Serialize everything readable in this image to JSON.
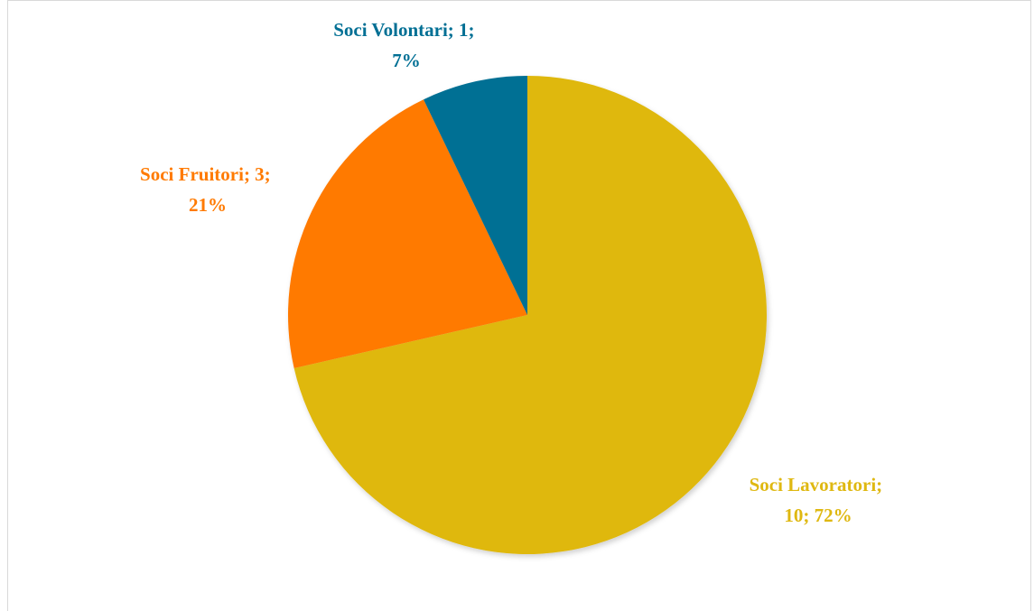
{
  "chart_data": {
    "type": "pie",
    "title": "",
    "series": [
      {
        "values": [
          10,
          3,
          1
        ],
        "colors": [
          "#dfb811",
          "#ff7a00",
          "#006f94"
        ]
      }
    ],
    "categories": [
      "Soci Lavoratori",
      "Soci Fruitori",
      "Soci Volontari"
    ],
    "percentages": [
      "72%",
      "21%",
      "7%"
    ],
    "labels": [
      {
        "line1": "Soci Lavoratori;",
        "line2": "10; 72%"
      },
      {
        "line1": "Soci Fruitori; 3;",
        "line2": "21%"
      },
      {
        "line1": "Soci Volontari; 1;",
        "line2": "7%"
      }
    ],
    "start_angle_deg": 0,
    "direction": "clockwise",
    "legend": "none"
  }
}
